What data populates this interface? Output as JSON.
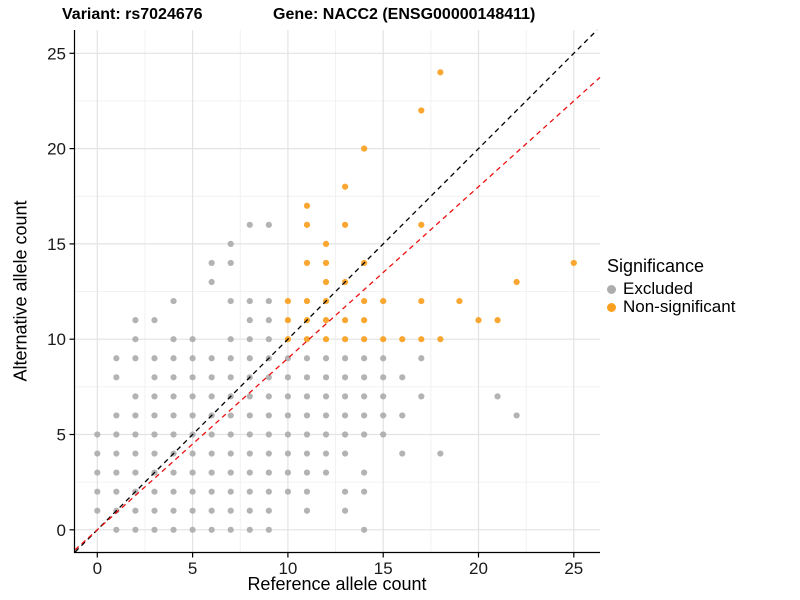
{
  "chart_data": {
    "type": "scatter",
    "title_left": "Variant: rs7024676",
    "title_right": "Gene: NACC2 (ENSG00000148411)",
    "xlabel": "Reference allele count",
    "ylabel": "Alternative allele count",
    "xticks": [
      0,
      5,
      10,
      15,
      20,
      25
    ],
    "yticks": [
      0,
      5,
      10,
      15,
      20,
      25
    ],
    "xlim": [
      -1.17,
      26.36
    ],
    "ylim": [
      -1.16,
      26.2
    ],
    "minor_step": 2.5,
    "grid": "on",
    "legend": {
      "title": "Significance",
      "position": "right",
      "items": [
        {
          "label": "Excluded",
          "color": "#ADADAD"
        },
        {
          "label": "Non-significant",
          "color": "#F9A01E"
        }
      ]
    },
    "lines": [
      {
        "name": "identity-line",
        "slope": 1.0,
        "intercept": 0,
        "color": "#000000",
        "style": "dashed"
      },
      {
        "name": "expected-ratio-line",
        "slope": 0.9,
        "intercept": 0,
        "color": "#EB1010",
        "style": "dashed"
      }
    ],
    "series": [
      {
        "name": "Excluded",
        "color": "#ADADAD",
        "points": [
          [
            1,
            0
          ],
          [
            2,
            0
          ],
          [
            3,
            0
          ],
          [
            4,
            0
          ],
          [
            5,
            0
          ],
          [
            6,
            0
          ],
          [
            7,
            0
          ],
          [
            8,
            0
          ],
          [
            9,
            0
          ],
          [
            14,
            0
          ],
          [
            0,
            1
          ],
          [
            1,
            1
          ],
          [
            2,
            1
          ],
          [
            3,
            1
          ],
          [
            4,
            1
          ],
          [
            5,
            1
          ],
          [
            6,
            1
          ],
          [
            7,
            1
          ],
          [
            8,
            1
          ],
          [
            9,
            1
          ],
          [
            11,
            1
          ],
          [
            13,
            1
          ],
          [
            0,
            2
          ],
          [
            1,
            2
          ],
          [
            2,
            2
          ],
          [
            3,
            2
          ],
          [
            4,
            2
          ],
          [
            5,
            2
          ],
          [
            6,
            2
          ],
          [
            7,
            2
          ],
          [
            8,
            2
          ],
          [
            9,
            2
          ],
          [
            10,
            2
          ],
          [
            11,
            2
          ],
          [
            13,
            2
          ],
          [
            14,
            2
          ],
          [
            0,
            3
          ],
          [
            1,
            3
          ],
          [
            2,
            3
          ],
          [
            3,
            3
          ],
          [
            4,
            3
          ],
          [
            5,
            3
          ],
          [
            6,
            3
          ],
          [
            7,
            3
          ],
          [
            8,
            3
          ],
          [
            9,
            3
          ],
          [
            10,
            3
          ],
          [
            11,
            3
          ],
          [
            12,
            3
          ],
          [
            14,
            3
          ],
          [
            0,
            4
          ],
          [
            1,
            4
          ],
          [
            2,
            4
          ],
          [
            3,
            4
          ],
          [
            4,
            4
          ],
          [
            5,
            4
          ],
          [
            6,
            4
          ],
          [
            7,
            4
          ],
          [
            8,
            4
          ],
          [
            9,
            4
          ],
          [
            10,
            4
          ],
          [
            11,
            4
          ],
          [
            12,
            4
          ],
          [
            13,
            4
          ],
          [
            16,
            4
          ],
          [
            18,
            4
          ],
          [
            0,
            5
          ],
          [
            1,
            5
          ],
          [
            2,
            5
          ],
          [
            3,
            5
          ],
          [
            4,
            5
          ],
          [
            5,
            5
          ],
          [
            6,
            5
          ],
          [
            7,
            5
          ],
          [
            8,
            5
          ],
          [
            9,
            5
          ],
          [
            10,
            5
          ],
          [
            11,
            5
          ],
          [
            12,
            5
          ],
          [
            13,
            5
          ],
          [
            14,
            5
          ],
          [
            15,
            5
          ],
          [
            1,
            6
          ],
          [
            2,
            6
          ],
          [
            3,
            6
          ],
          [
            4,
            6
          ],
          [
            5,
            6
          ],
          [
            6,
            6
          ],
          [
            7,
            6
          ],
          [
            8,
            6
          ],
          [
            9,
            6
          ],
          [
            10,
            6
          ],
          [
            11,
            6
          ],
          [
            12,
            6
          ],
          [
            13,
            6
          ],
          [
            14,
            6
          ],
          [
            15,
            6
          ],
          [
            16,
            6
          ],
          [
            22,
            6
          ],
          [
            2,
            7
          ],
          [
            3,
            7
          ],
          [
            4,
            7
          ],
          [
            5,
            7
          ],
          [
            6,
            7
          ],
          [
            7,
            7
          ],
          [
            8,
            7
          ],
          [
            9,
            7
          ],
          [
            10,
            7
          ],
          [
            11,
            7
          ],
          [
            12,
            7
          ],
          [
            13,
            7
          ],
          [
            14,
            7
          ],
          [
            15,
            7
          ],
          [
            17,
            7
          ],
          [
            21,
            7
          ],
          [
            1,
            8
          ],
          [
            3,
            8
          ],
          [
            4,
            8
          ],
          [
            5,
            8
          ],
          [
            6,
            8
          ],
          [
            7,
            8
          ],
          [
            8,
            8
          ],
          [
            9,
            8
          ],
          [
            10,
            8
          ],
          [
            11,
            8
          ],
          [
            12,
            8
          ],
          [
            13,
            8
          ],
          [
            14,
            8
          ],
          [
            15,
            8
          ],
          [
            16,
            8
          ],
          [
            1,
            9
          ],
          [
            2,
            9
          ],
          [
            3,
            9
          ],
          [
            4,
            9
          ],
          [
            5,
            9
          ],
          [
            6,
            9
          ],
          [
            7,
            9
          ],
          [
            8,
            9
          ],
          [
            9,
            9
          ],
          [
            10,
            9
          ],
          [
            11,
            9
          ],
          [
            12,
            9
          ],
          [
            13,
            9
          ],
          [
            14,
            9
          ],
          [
            15,
            9
          ],
          [
            17,
            9
          ],
          [
            2,
            10
          ],
          [
            4,
            10
          ],
          [
            5,
            10
          ],
          [
            7,
            10
          ],
          [
            8,
            10
          ],
          [
            9,
            10
          ],
          [
            2,
            11
          ],
          [
            3,
            11
          ],
          [
            8,
            11
          ],
          [
            9,
            11
          ],
          [
            4,
            12
          ],
          [
            7,
            12
          ],
          [
            8,
            12
          ],
          [
            9,
            12
          ],
          [
            6,
            13
          ],
          [
            6,
            14
          ],
          [
            7,
            14
          ],
          [
            7,
            15
          ],
          [
            8,
            16
          ],
          [
            9,
            16
          ]
        ]
      },
      {
        "name": "Non-significant",
        "color": "#F9A01E",
        "points": [
          [
            10,
            10
          ],
          [
            11,
            10
          ],
          [
            12,
            10
          ],
          [
            13,
            10
          ],
          [
            14,
            10
          ],
          [
            15,
            10
          ],
          [
            16,
            10
          ],
          [
            17,
            10
          ],
          [
            18,
            10
          ],
          [
            10,
            11
          ],
          [
            11,
            11
          ],
          [
            12,
            11
          ],
          [
            13,
            11
          ],
          [
            14,
            11
          ],
          [
            20,
            11
          ],
          [
            21,
            11
          ],
          [
            10,
            12
          ],
          [
            11,
            12
          ],
          [
            12,
            12
          ],
          [
            14,
            12
          ],
          [
            15,
            12
          ],
          [
            17,
            12
          ],
          [
            19,
            12
          ],
          [
            12,
            13
          ],
          [
            13,
            13
          ],
          [
            22,
            13
          ],
          [
            11,
            14
          ],
          [
            12,
            14
          ],
          [
            14,
            14
          ],
          [
            25,
            14
          ],
          [
            12,
            15
          ],
          [
            11,
            16
          ],
          [
            13,
            16
          ],
          [
            17,
            16
          ],
          [
            11,
            17
          ],
          [
            13,
            18
          ],
          [
            14,
            20
          ],
          [
            17,
            22
          ],
          [
            18,
            24
          ]
        ]
      }
    ],
    "axis_color": "#000000",
    "major_grid_color": "#E3E3E3",
    "minor_grid_color": "#F0F0F0",
    "tick_label_color": "#1A1A1A"
  }
}
